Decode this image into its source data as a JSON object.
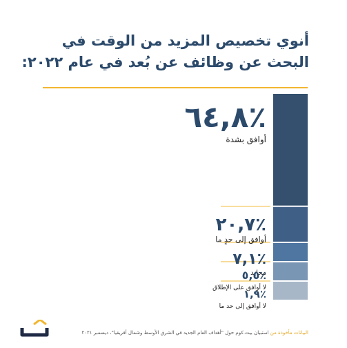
{
  "title": "أنوي تخصيص المزيد من الوقت في البحث عن وظائف عن بُعد في عام ٢٠٢٢:",
  "colors": {
    "title": "#2c4a6b",
    "accent": "#f2b731",
    "percent_text": "#2c4a6b"
  },
  "chart_data": {
    "type": "bar",
    "orientation": "stacked-vertical",
    "unit": "%",
    "categories": [
      "أوافق بشدة",
      "أوافق إلى حدٍ ما",
      "محايد",
      "لا أوافق على الإطلاق",
      "لا أوافق إلى حد ما"
    ],
    "values": [
      64.8,
      20.7,
      7.1,
      5.5,
      1.9
    ],
    "value_labels": [
      "٪٦٤,٨",
      "٪٢٠,٧",
      "٪٧,١",
      "٪٥,٥",
      "٪١,٩"
    ],
    "colors": [
      "#34506e",
      "#3f5f87",
      "#4f76a1",
      "#7a96b5",
      "#a7b7c8"
    ]
  },
  "footer": {
    "source": "البيانات مأخوذة من",
    "text": " استبيان بيت.كوم حول \"أهداف العام الجديد في الشرق الأوسط وشمال أفريقيا\"، ديسمبر ٢٠٢١"
  },
  "logo": {
    "name": "bayt-logo",
    "letter_color": "#1f2a44",
    "roof_color": "#f2b731"
  }
}
